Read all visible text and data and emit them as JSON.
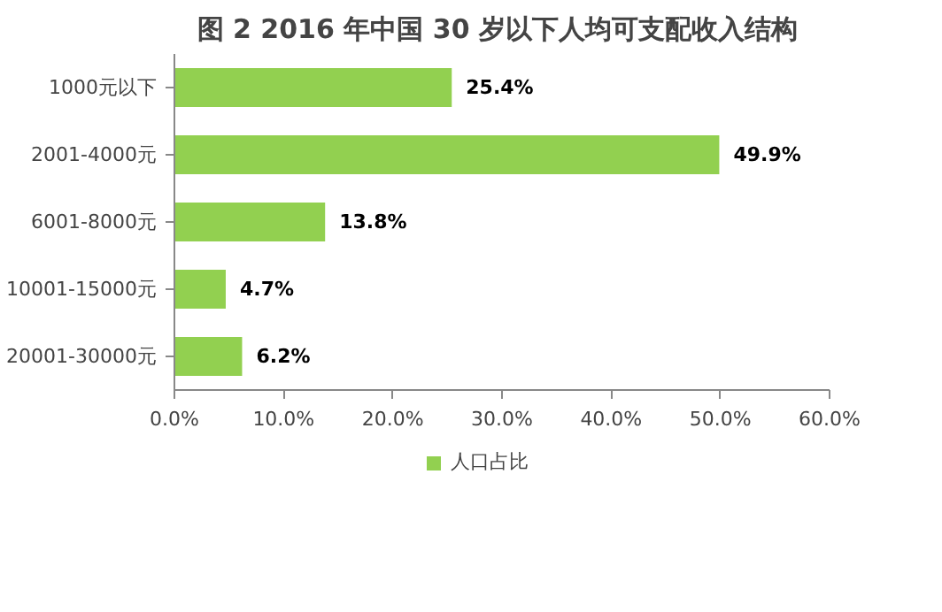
{
  "chart_data": {
    "type": "bar",
    "orientation": "horizontal",
    "title": "图 2  2016 年中国 30 岁以下人均可支配收入结构",
    "categories": [
      "1000元以下",
      "2001-4000元",
      "6001-8000元",
      "10001-15000元",
      "20001-30000元"
    ],
    "series": [
      {
        "name": "人口占比",
        "color": "#92d050",
        "values": [
          25.4,
          49.9,
          13.8,
          4.7,
          6.2
        ]
      }
    ],
    "value_labels": [
      "25.4%",
      "49.9%",
      "13.8%",
      "4.7%",
      "6.2%"
    ],
    "xlim": [
      0,
      60
    ],
    "xticks": [
      {
        "value": 0,
        "label": "0.0%"
      },
      {
        "value": 10,
        "label": "10.0%"
      },
      {
        "value": 20,
        "label": "20.0%"
      },
      {
        "value": 30,
        "label": "30.0%"
      },
      {
        "value": 40,
        "label": "40.0%"
      },
      {
        "value": 50,
        "label": "50.0%"
      },
      {
        "value": 60,
        "label": "60.0%"
      }
    ],
    "grid": false,
    "legend": "bottom"
  }
}
